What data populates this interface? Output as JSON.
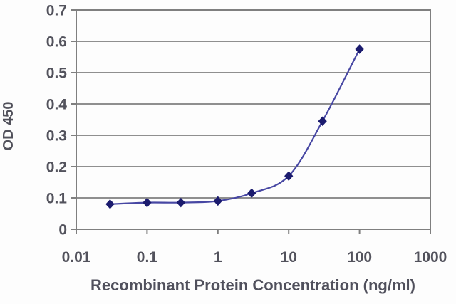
{
  "chart_data": {
    "type": "line",
    "title": "",
    "xlabel": "Recombinant Protein Concentration (ng/ml)",
    "ylabel": "OD 450",
    "x_scale": "log",
    "xlim": [
      0.01,
      1000
    ],
    "ylim": [
      0,
      0.7
    ],
    "x_ticks": [
      0.01,
      0.1,
      1,
      10,
      100,
      1000
    ],
    "x_tick_labels": [
      "0.01",
      "0.1",
      "1",
      "10",
      "100",
      "1000"
    ],
    "y_ticks": [
      0,
      0.1,
      0.2,
      0.3,
      0.4,
      0.5,
      0.6,
      0.7
    ],
    "y_tick_labels": [
      "0",
      "0.1",
      "0.2",
      "0.3",
      "0.4",
      "0.5",
      "0.6",
      "0.7"
    ],
    "grid": "horizontal",
    "legend": "none",
    "series": [
      {
        "name": "OD 450",
        "marker": "diamond",
        "line_style": "smooth",
        "x": [
          0.03,
          0.1,
          0.3,
          1,
          3,
          10,
          30,
          100
        ],
        "y": [
          0.08,
          0.085,
          0.085,
          0.09,
          0.115,
          0.17,
          0.345,
          0.575
        ]
      }
    ],
    "colors": {
      "line": "#4747a3",
      "marker": "#1b1b6e",
      "grid": "#7f7f7f",
      "border": "#7f7f7f",
      "text": "#52525c",
      "background": "#fdfdfd"
    }
  }
}
